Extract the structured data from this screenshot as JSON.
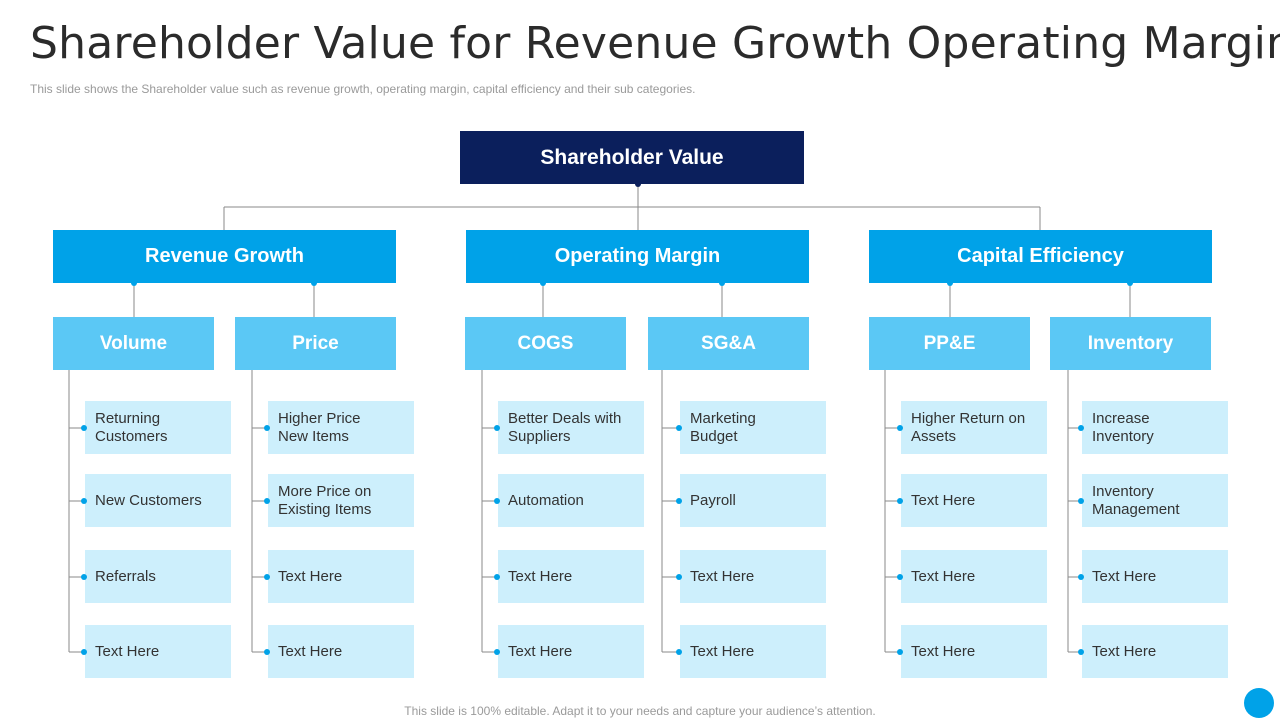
{
  "title": "Shareholder Value for Revenue Growth Operating Margin",
  "subtitle": "This slide shows the Shareholder value such as revenue growth, operating margin, capital efficiency and their sub categories.",
  "footer": "This slide is 100% editable. Adapt it to your needs and capture your audience’s attention.",
  "root": "Shareholder Value",
  "categories": [
    {
      "label": "Revenue Growth"
    },
    {
      "label": "Operating Margin"
    },
    {
      "label": "Capital Efficiency"
    }
  ],
  "subcategories": [
    {
      "label": "Volume",
      "items": [
        "Returning\nCustomers",
        "New Customers",
        "Referrals",
        "Text Here"
      ]
    },
    {
      "label": "Price",
      "items": [
        "Higher Price\nNew Items",
        "More Price on\nExisting Items",
        "Text Here",
        "Text Here"
      ]
    },
    {
      "label": "COGS",
      "items": [
        "Better Deals with\nSuppliers",
        "Automation",
        "Text Here",
        "Text Here"
      ]
    },
    {
      "label": "SG&A",
      "items": [
        "Marketing\nBudget",
        "Payroll",
        "Text Here",
        "Text Here"
      ]
    },
    {
      "label": "PP&E",
      "items": [
        "Higher Return on\nAssets",
        "Text Here",
        "Text Here",
        "Text Here"
      ]
    },
    {
      "label": "Inventory",
      "items": [
        "Increase\nInventory",
        "Inventory\nManagement",
        "Text Here",
        "Text Here"
      ]
    }
  ],
  "colors": {
    "root": "#0b1f5c",
    "category": "#00a2e8",
    "subcategory": "#5bc8f5",
    "leaf": "#cdeffc",
    "connector": "#8a8a8a"
  }
}
